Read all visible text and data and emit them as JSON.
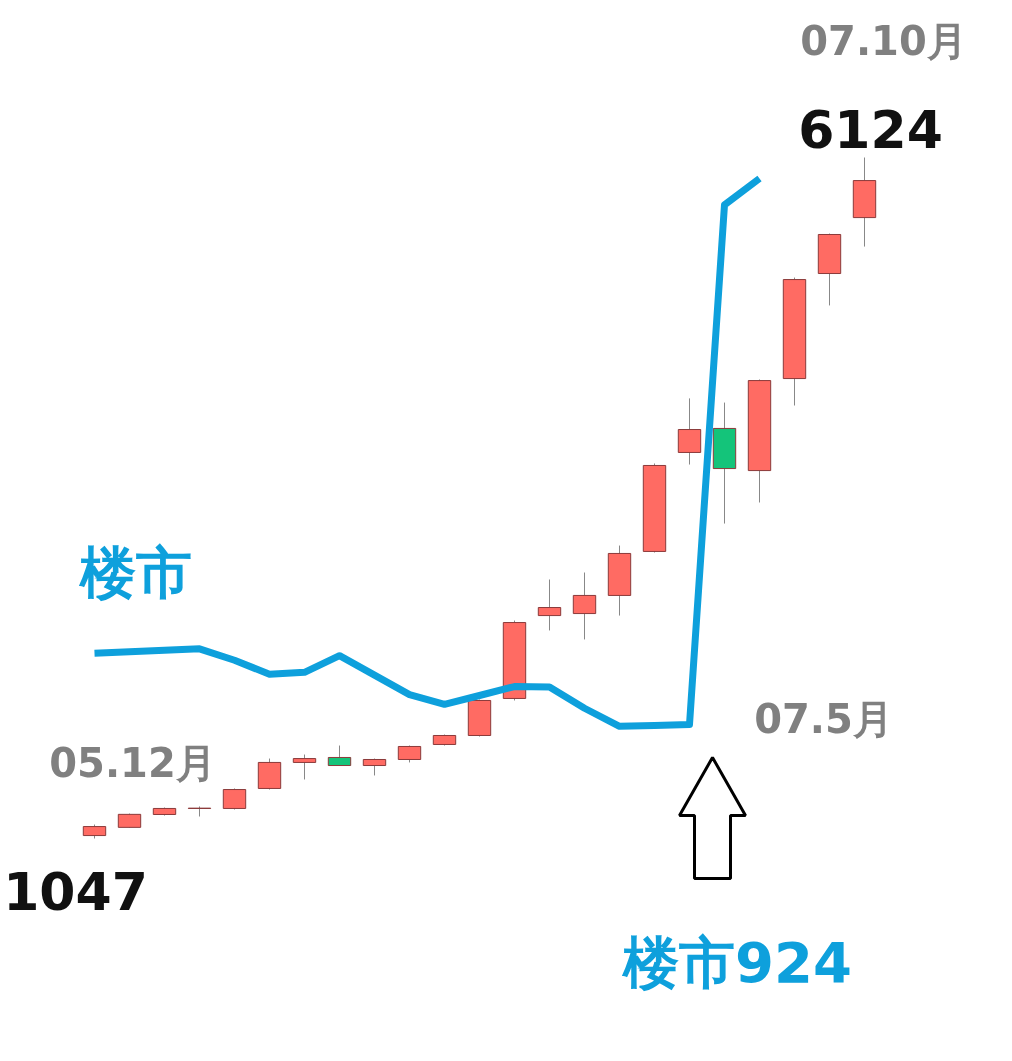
{
  "chart_data": {
    "type": "candlestick",
    "categories": [
      null,
      null,
      null,
      null,
      null,
      null,
      null,
      null,
      null,
      null,
      null,
      null,
      null,
      null,
      null,
      null,
      null,
      null,
      null,
      null,
      null,
      null,
      null
    ],
    "ohlc": [
      [
        1069,
        1151,
        1047,
        1136
      ],
      [
        1130,
        1233,
        1129,
        1227
      ],
      [
        1226,
        1278,
        1218,
        1271
      ],
      [
        1271,
        1286,
        1211,
        1273
      ],
      [
        1271,
        1420,
        1263,
        1412
      ],
      [
        1420,
        1643,
        1412,
        1614
      ],
      [
        1614,
        1673,
        1487,
        1643
      ],
      [
        1651,
        1740,
        1591,
        1591
      ],
      [
        1591,
        1643,
        1517,
        1636
      ],
      [
        1636,
        1740,
        1614,
        1733
      ],
      [
        1748,
        1822,
        1740,
        1815
      ],
      [
        1815,
        2083,
        1807,
        2076
      ],
      [
        2091,
        2672,
        2076,
        2657
      ],
      [
        2709,
        2978,
        2598,
        2769
      ],
      [
        2724,
        3030,
        2531,
        2859
      ],
      [
        2859,
        3231,
        2709,
        3172
      ],
      [
        3187,
        3843,
        3179,
        3828
      ],
      [
        3925,
        4328,
        3835,
        4096
      ],
      [
        4104,
        4297,
        3395,
        3805
      ],
      [
        3790,
        4469,
        3552,
        4461
      ],
      [
        4476,
        5229,
        4275,
        5214
      ],
      [
        5259,
        5557,
        5021,
        5550
      ],
      [
        5676,
        6124,
        5460,
        5952
      ]
    ],
    "colors": [
      "#ff6b63",
      "#ff6b63",
      "#ff6b63",
      "#ff6b63",
      "#ff6b63",
      "#ff6b63",
      "#ff6b63",
      "#14c47a",
      "#ff6b63",
      "#ff6b63",
      "#ff6b63",
      "#ff6b63",
      "#ff6b63",
      "#ff6b63",
      "#ff6b63",
      "#ff6b63",
      "#ff6b63",
      "#ff6b63",
      "#14c47a",
      "#ff6b63",
      "#ff6b63",
      "#ff6b63",
      "#ff6b63"
    ],
    "series": [
      {
        "type": "line",
        "name": "楼市",
        "color": "#0ea0dc",
        "values": [
          2428,
          2439,
          2450,
          2461,
          2376,
          2271,
          2286,
          2410,
          2265,
          2120,
          2047,
          2113,
          2180,
          2176,
          2018,
          1883,
          1890,
          1897,
          5771,
          5967,
          null,
          null,
          null
        ]
      }
    ],
    "annotations": [
      "1047",
      "05.12月",
      "07.5月",
      "楼市924",
      "6124",
      "07.10月"
    ],
    "tick_labels": false
  }
}
